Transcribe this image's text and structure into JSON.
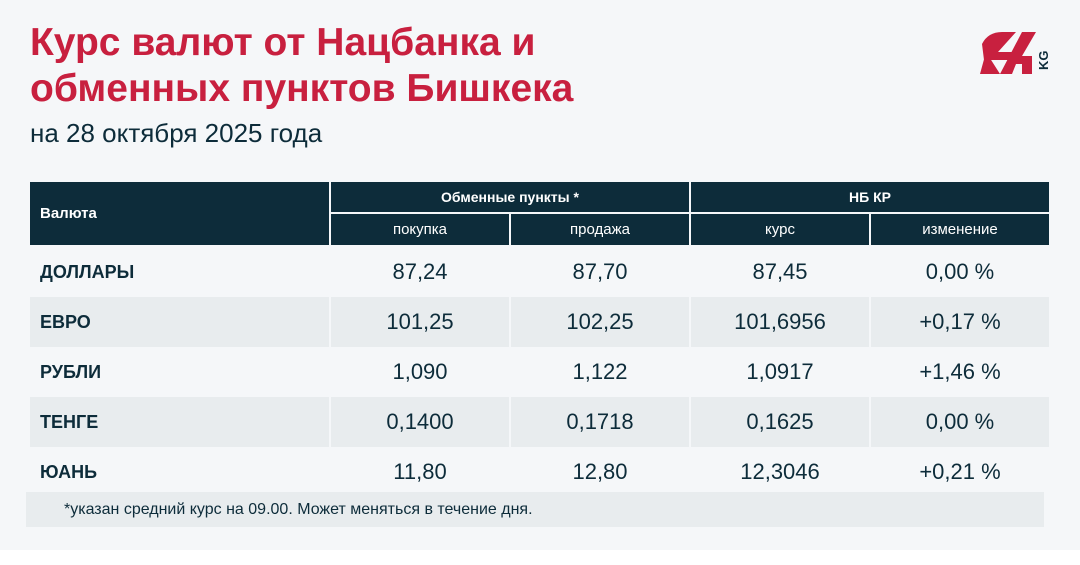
{
  "header": {
    "title_line1": "Курс валют от Нацбанка и",
    "title_line2": "обменных пунктов Бишкека",
    "subtitle": "на 28 октября 2025 года",
    "logo_text": "24",
    "logo_suffix": "KG"
  },
  "colors": {
    "accent": "#c8203f",
    "header_bg": "#0d2c3a",
    "background": "#f5f7f9",
    "row_alt": "#e8ecee"
  },
  "table": {
    "col_currency": "Валюта",
    "group_exchange": "Обменные пункты *",
    "group_nb": "НБ КР",
    "sub_headers": [
      "покупка",
      "продажа",
      "курс",
      "изменение"
    ],
    "rows": [
      {
        "name": "ДОЛЛАРЫ",
        "buy": "87,24",
        "sell": "87,70",
        "rate": "87,45",
        "change": "0,00 %"
      },
      {
        "name": "ЕВРО",
        "buy": "101,25",
        "sell": "102,25",
        "rate": "101,6956",
        "change": "+0,17 %"
      },
      {
        "name": "РУБЛИ",
        "buy": "1,090",
        "sell": "1,122",
        "rate": "1,0917",
        "change": "+1,46 %"
      },
      {
        "name": "ТЕНГЕ",
        "buy": "0,1400",
        "sell": "0,1718",
        "rate": "0,1625",
        "change": "0,00 %"
      },
      {
        "name": "ЮАНЬ",
        "buy": "11,80",
        "sell": "12,80",
        "rate": "12,3046",
        "change": "+0,21 %"
      }
    ]
  },
  "footnote": "*указан средний курс на 09.00. Может меняться в течение дня."
}
